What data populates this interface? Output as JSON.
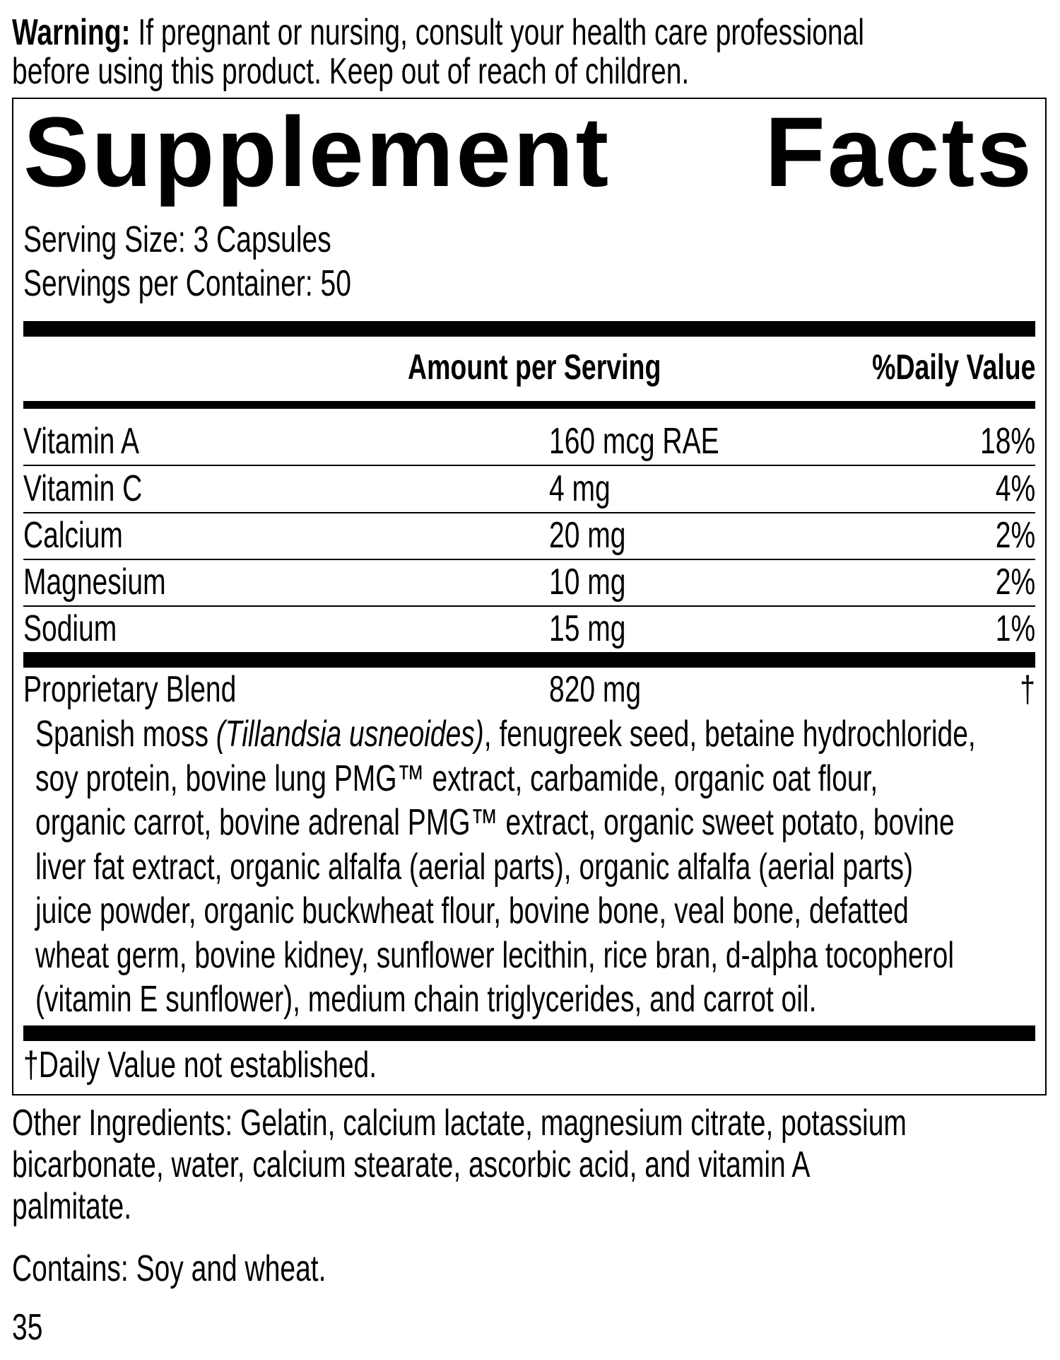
{
  "warning": {
    "label": "Warning:",
    "line1": "If pregnant or nursing, consult your health care professional",
    "line2": "before using this product. Keep out of reach of children."
  },
  "title": {
    "word1": "Supplement",
    "word2": "Facts"
  },
  "serving_size": "Serving Size: 3 Capsules",
  "servings_per_container": "Servings per Container: 50",
  "header": {
    "amount": "Amount per Serving",
    "daily_value": "%Daily Value"
  },
  "nutrients": [
    {
      "name": "Vitamin A",
      "amount": "160 mcg RAE",
      "dv": "18%"
    },
    {
      "name": "Vitamin C",
      "amount": "4 mg",
      "dv": "4%"
    },
    {
      "name": "Calcium",
      "amount": "20 mg",
      "dv": "2%"
    },
    {
      "name": "Magnesium",
      "amount": "10 mg",
      "dv": "2%"
    },
    {
      "name": "Sodium",
      "amount": "15 mg",
      "dv": "1%"
    }
  ],
  "blend": {
    "name": "Proprietary Blend",
    "amount": "820 mg",
    "dv": "†",
    "line1_pre": "Spanish moss ",
    "line1_italic": "(Tillandsia usneoides)",
    "line1_post": ", fenugreek seed, betaine hydrochloride,",
    "lines": [
      "soy protein, bovine lung PMG™ extract, carbamide, organic oat flour,",
      "organic carrot, bovine adrenal PMG™ extract, organic sweet potato, bovine",
      "liver fat extract, organic alfalfa (aerial parts), organic alfalfa (aerial parts)",
      "juice powder, organic buckwheat flour, bovine bone, veal bone, defatted",
      "wheat germ, bovine kidney, sunflower lecithin, rice bran, d-alpha tocopherol",
      "(vitamin E sunflower), medium chain triglycerides, and carrot oil."
    ]
  },
  "footnote": "†Daily Value not established.",
  "other_ingredients": [
    "Other Ingredients: Gelatin, calcium lactate, magnesium citrate, potassium",
    "bicarbonate, water, calcium stearate, ascorbic acid, and vitamin A",
    "palmitate."
  ],
  "contains": "Contains: Soy and wheat.",
  "page_number": "35"
}
